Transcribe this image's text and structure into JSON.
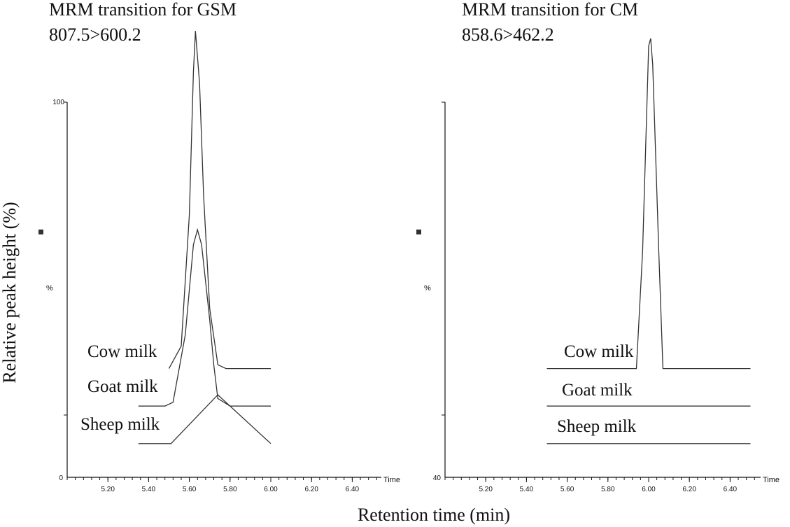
{
  "figure": {
    "ylabel": "Relative peak height (%)",
    "xlabel": "Retention time (min)"
  },
  "chart_data": [
    {
      "type": "line",
      "title": "MRM transition for GSM",
      "subtitle": "807.5>600.2",
      "x_unit_label": "Time",
      "y_axis_label": "%",
      "y_top_label": "100",
      "y_bottom_label": "0",
      "xlim": [
        5.0,
        6.55
      ],
      "x_ticks": [
        "5.20",
        "5.40",
        "5.60",
        "5.80",
        "6.00",
        "6.20",
        "6.40"
      ],
      "trace_labels": [
        "Cow milk",
        "Goat milk",
        "Sheep milk"
      ],
      "series": [
        {
          "name": "Cow milk",
          "x": [
            5.5,
            5.56,
            5.6,
            5.62,
            5.63,
            5.65,
            5.67,
            5.7,
            5.74,
            5.78,
            6.0
          ],
          "y": [
            29,
            35,
            70,
            108,
            119,
            105,
            75,
            45,
            30,
            29,
            29
          ]
        },
        {
          "name": "Goat milk",
          "x": [
            5.35,
            5.48,
            5.52,
            5.58,
            5.62,
            5.64,
            5.66,
            5.7,
            5.72,
            5.74,
            5.8,
            6.0
          ],
          "y": [
            19,
            19,
            20,
            38,
            62,
            66,
            62,
            42,
            30,
            21,
            19,
            19
          ]
        },
        {
          "name": "Sheep milk",
          "x": [
            5.35,
            5.51,
            5.74,
            6.0
          ],
          "y": [
            9,
            9,
            22,
            9
          ]
        }
      ]
    },
    {
      "type": "line",
      "title": "MRM transition for CM",
      "subtitle": "858.6>462.2",
      "x_unit_label": "Time",
      "y_axis_label": "%",
      "y_top_label": "",
      "y_bottom_label": "40",
      "xlim": [
        5.0,
        6.55
      ],
      "x_ticks": [
        "5.20",
        "5.40",
        "5.60",
        "5.80",
        "6.00",
        "6.20",
        "6.40"
      ],
      "trace_labels": [
        "Cow milk",
        "Goat milk",
        "Sheep milk"
      ],
      "series": [
        {
          "name": "Cow milk",
          "x": [
            5.5,
            5.94,
            5.97,
            6.0,
            6.01,
            6.02,
            6.05,
            6.07,
            6.5
          ],
          "y": [
            29,
            29,
            60,
            115,
            117,
            110,
            60,
            29,
            29
          ]
        },
        {
          "name": "Goat milk",
          "x": [
            5.5,
            6.5
          ],
          "y": [
            19,
            19
          ]
        },
        {
          "name": "Sheep milk",
          "x": [
            5.5,
            6.5
          ],
          "y": [
            9,
            9
          ]
        }
      ]
    }
  ]
}
